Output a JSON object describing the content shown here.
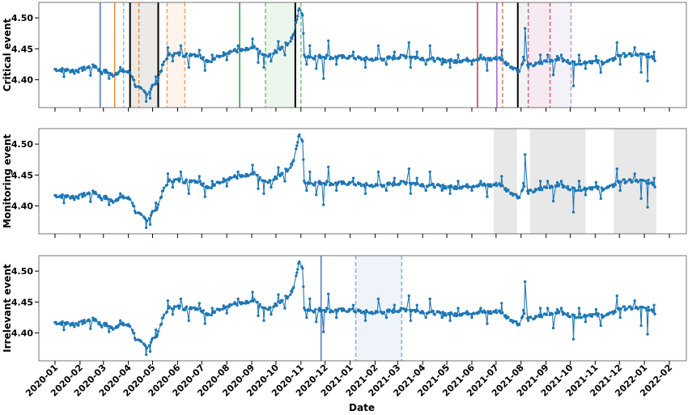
{
  "figure": {
    "xlabel": "Date"
  },
  "chart_data": [
    {
      "type": "line",
      "ylabel": "Critical event",
      "yticks": [
        "4.40",
        "4.45",
        "4.50"
      ],
      "ylim": [
        4.355,
        4.525
      ],
      "vlines": [
        {
          "date": "2020-02-26",
          "color": "#4c80c8",
          "style": "solid"
        },
        {
          "date": "2020-03-15",
          "color": "#f0913a",
          "style": "solid"
        },
        {
          "date": "2020-03-26",
          "color": "#9bbde0",
          "style": "dashed"
        },
        {
          "date": "2020-04-03",
          "color": "#000000",
          "style": "solid"
        },
        {
          "date": "2020-04-14",
          "color": "#f0913a",
          "style": "dashed"
        },
        {
          "date": "2020-05-08",
          "color": "#000000",
          "style": "solid"
        },
        {
          "date": "2020-05-19",
          "color": "#f4a76a",
          "style": "dashed"
        },
        {
          "date": "2020-06-10",
          "color": "#f4a76a",
          "style": "dashed"
        },
        {
          "date": "2020-08-17",
          "color": "#3aa33a",
          "style": "solid"
        },
        {
          "date": "2020-09-18",
          "color": "#7ec47e",
          "style": "dashed"
        },
        {
          "date": "2020-10-25",
          "color": "#000000",
          "style": "solid"
        },
        {
          "date": "2020-11-01",
          "color": "#7ec47e",
          "style": "dashed"
        },
        {
          "date": "2021-06-08",
          "color": "#d13f3f",
          "style": "solid"
        },
        {
          "date": "2021-07-02",
          "color": "#a86fc4",
          "style": "solid"
        },
        {
          "date": "2021-07-09",
          "color": "#e37a7a",
          "style": "dashed"
        },
        {
          "date": "2021-07-28",
          "color": "#000000",
          "style": "solid"
        },
        {
          "date": "2021-08-10",
          "color": "#c0709a",
          "style": "dashed"
        },
        {
          "date": "2021-09-06",
          "color": "#d26a6a",
          "style": "dashed"
        },
        {
          "date": "2021-10-02",
          "color": "#b9a3d8",
          "style": "dashed"
        }
      ],
      "shades": [
        {
          "start": "2020-04-03",
          "end": "2020-05-08",
          "color": "#6b4d2e",
          "opacity": 0.12
        },
        {
          "start": "2020-05-19",
          "end": "2020-06-10",
          "color": "#f4a76a",
          "opacity": 0.12
        },
        {
          "start": "2020-09-18",
          "end": "2020-10-25",
          "color": "#7ec47e",
          "opacity": 0.15
        },
        {
          "start": "2021-07-28",
          "end": "2021-08-10",
          "color": "#888888",
          "opacity": 0.1
        },
        {
          "start": "2021-08-10",
          "end": "2021-09-06",
          "color": "#c0709a",
          "opacity": 0.15
        },
        {
          "start": "2021-09-06",
          "end": "2021-10-02",
          "color": "#b9a3d8",
          "opacity": 0.15
        }
      ]
    },
    {
      "type": "line",
      "ylabel": "Monitoring event",
      "yticks": [
        "4.40",
        "4.45",
        "4.50"
      ],
      "ylim": [
        4.355,
        4.525
      ],
      "vlines": [],
      "shades": [
        {
          "start": "2021-06-28",
          "end": "2021-07-27",
          "color": "#b4b4b4",
          "opacity": 0.3
        },
        {
          "start": "2021-08-12",
          "end": "2021-10-20",
          "color": "#b4b4b4",
          "opacity": 0.3
        },
        {
          "start": "2021-11-24",
          "end": "2022-01-16",
          "color": "#b4b4b4",
          "opacity": 0.3
        }
      ]
    },
    {
      "type": "line",
      "ylabel": "Irrelevant event",
      "yticks": [
        "4.40",
        "4.45",
        "4.50"
      ],
      "ylim": [
        4.355,
        4.525
      ],
      "vlines": [
        {
          "date": "2020-11-26",
          "color": "#4c80c8",
          "style": "solid"
        },
        {
          "date": "2021-01-08",
          "color": "#8fb3d9",
          "style": "dashed"
        },
        {
          "date": "2021-03-06",
          "color": "#8fb3d9",
          "style": "dashed"
        }
      ],
      "shades": [
        {
          "start": "2021-01-08",
          "end": "2021-03-06",
          "color": "#8fb3d9",
          "opacity": 0.15
        }
      ]
    }
  ],
  "shared_series": {
    "color": "#1f77b4",
    "anchors": [
      [
        "2020-01-01",
        4.417
      ],
      [
        "2020-01-10",
        4.416
      ],
      [
        "2020-01-20",
        4.415
      ],
      [
        "2020-01-31",
        4.415
      ],
      [
        "2020-02-10",
        4.42
      ],
      [
        "2020-02-20",
        4.422
      ],
      [
        "2020-02-28",
        4.412
      ],
      [
        "2020-03-05",
        4.414
      ],
      [
        "2020-03-12",
        4.407
      ],
      [
        "2020-03-20",
        4.413
      ],
      [
        "2020-03-28",
        4.414
      ],
      [
        "2020-04-05",
        4.41
      ],
      [
        "2020-04-10",
        4.39
      ],
      [
        "2020-04-18",
        4.383
      ],
      [
        "2020-04-25",
        4.376
      ],
      [
        "2020-05-01",
        4.39
      ],
      [
        "2020-05-07",
        4.398
      ],
      [
        "2020-05-14",
        4.425
      ],
      [
        "2020-05-22",
        4.44
      ],
      [
        "2020-06-01",
        4.442
      ],
      [
        "2020-06-10",
        4.44
      ],
      [
        "2020-06-20",
        4.442
      ],
      [
        "2020-07-01",
        4.437
      ],
      [
        "2020-07-10",
        4.43
      ],
      [
        "2020-07-20",
        4.436
      ],
      [
        "2020-07-31",
        4.444
      ],
      [
        "2020-08-10",
        4.447
      ],
      [
        "2020-08-20",
        4.447
      ],
      [
        "2020-08-31",
        4.45
      ],
      [
        "2020-09-05",
        4.452
      ],
      [
        "2020-09-12",
        4.442
      ],
      [
        "2020-09-20",
        4.437
      ],
      [
        "2020-10-01",
        4.445
      ],
      [
        "2020-10-10",
        4.455
      ],
      [
        "2020-10-17",
        4.46
      ],
      [
        "2020-10-22",
        4.47
      ],
      [
        "2020-10-26",
        4.49
      ],
      [
        "2020-10-30",
        4.517
      ],
      [
        "2020-11-03",
        4.505
      ],
      [
        "2020-11-05",
        4.44
      ],
      [
        "2020-11-15",
        4.436
      ],
      [
        "2020-11-26",
        4.438
      ],
      [
        "2020-12-10",
        4.436
      ],
      [
        "2021-01-01",
        4.437
      ],
      [
        "2021-01-15",
        4.434
      ],
      [
        "2021-02-01",
        4.433
      ],
      [
        "2021-02-20",
        4.435
      ],
      [
        "2021-03-10",
        4.438
      ],
      [
        "2021-04-01",
        4.435
      ],
      [
        "2021-04-20",
        4.432
      ],
      [
        "2021-05-10",
        4.43
      ],
      [
        "2021-05-25",
        4.432
      ],
      [
        "2021-06-10",
        4.434
      ],
      [
        "2021-06-25",
        4.433
      ],
      [
        "2021-07-05",
        4.436
      ],
      [
        "2021-07-15",
        4.425
      ],
      [
        "2021-07-25",
        4.418
      ],
      [
        "2021-07-31",
        4.413
      ],
      [
        "2021-08-04",
        4.435
      ],
      [
        "2021-08-08",
        4.422
      ],
      [
        "2021-08-20",
        4.425
      ],
      [
        "2021-09-01",
        4.43
      ],
      [
        "2021-09-15",
        4.435
      ],
      [
        "2021-09-25",
        4.43
      ],
      [
        "2021-10-10",
        4.427
      ],
      [
        "2021-10-25",
        4.43
      ],
      [
        "2021-11-10",
        4.428
      ],
      [
        "2021-11-20",
        4.43
      ],
      [
        "2021-12-01",
        4.44
      ],
      [
        "2021-12-15",
        4.44
      ],
      [
        "2022-01-01",
        4.44
      ],
      [
        "2022-01-10",
        4.438
      ],
      [
        "2022-01-16",
        4.428
      ]
    ],
    "spikes": [
      [
        "2020-01-12",
        4.405
      ],
      [
        "2020-01-25",
        4.41
      ],
      [
        "2020-02-14",
        4.407
      ],
      [
        "2020-03-08",
        4.402
      ],
      [
        "2020-03-22",
        4.42
      ],
      [
        "2020-04-23",
        4.365
      ],
      [
        "2020-04-28",
        4.37
      ],
      [
        "2020-05-05",
        4.405
      ],
      [
        "2020-05-20",
        4.452
      ],
      [
        "2020-05-26",
        4.43
      ],
      [
        "2020-06-05",
        4.455
      ],
      [
        "2020-06-15",
        4.42
      ],
      [
        "2020-06-28",
        4.448
      ],
      [
        "2020-07-05",
        4.415
      ],
      [
        "2020-07-14",
        4.44
      ],
      [
        "2020-08-01",
        4.432
      ],
      [
        "2020-08-15",
        4.455
      ],
      [
        "2020-09-02",
        4.466
      ],
      [
        "2020-09-09",
        4.428
      ],
      [
        "2020-09-16",
        4.42
      ],
      [
        "2020-09-25",
        4.43
      ],
      [
        "2020-10-04",
        4.462
      ],
      [
        "2020-10-12",
        4.44
      ],
      [
        "2020-10-20",
        4.468
      ],
      [
        "2020-11-08",
        4.425
      ],
      [
        "2020-11-12",
        4.455
      ],
      [
        "2020-11-20",
        4.418
      ],
      [
        "2020-11-29",
        4.402
      ],
      [
        "2020-12-03",
        4.44
      ],
      [
        "2020-12-05",
        4.463
      ],
      [
        "2020-12-15",
        4.425
      ],
      [
        "2021-01-05",
        4.445
      ],
      [
        "2021-01-20",
        4.42
      ],
      [
        "2021-02-05",
        4.455
      ],
      [
        "2021-02-15",
        4.425
      ],
      [
        "2021-02-25",
        4.445
      ],
      [
        "2021-03-15",
        4.46
      ],
      [
        "2021-03-17",
        4.42
      ],
      [
        "2021-03-25",
        4.445
      ],
      [
        "2021-04-05",
        4.425
      ],
      [
        "2021-04-10",
        4.455
      ],
      [
        "2021-04-25",
        4.425
      ],
      [
        "2021-05-05",
        4.42
      ],
      [
        "2021-05-15",
        4.44
      ],
      [
        "2021-06-01",
        4.425
      ],
      [
        "2021-06-12",
        4.44
      ],
      [
        "2021-06-20",
        4.415
      ],
      [
        "2021-07-08",
        4.448
      ],
      [
        "2021-08-06",
        4.483
      ],
      [
        "2021-08-25",
        4.44
      ],
      [
        "2021-09-03",
        4.44
      ],
      [
        "2021-09-10",
        4.408
      ],
      [
        "2021-09-20",
        4.44
      ],
      [
        "2021-10-05",
        4.39
      ],
      [
        "2021-10-12",
        4.44
      ],
      [
        "2021-10-20",
        4.418
      ],
      [
        "2021-11-02",
        4.438
      ],
      [
        "2021-11-08",
        4.412
      ],
      [
        "2021-11-28",
        4.46
      ],
      [
        "2021-12-02",
        4.425
      ],
      [
        "2021-12-20",
        4.452
      ],
      [
        "2021-12-28",
        4.412
      ],
      [
        "2022-01-05",
        4.398
      ],
      [
        "2022-01-13",
        4.445
      ]
    ]
  },
  "x_axis": {
    "tick_labels": [
      "2020-01",
      "2020-02",
      "2020-03",
      "2020-04",
      "2020-05",
      "2020-06",
      "2020-07",
      "2020-08",
      "2020-09",
      "2020-10",
      "2020-11",
      "2020-12",
      "2021-01",
      "2021-02",
      "2021-03",
      "2021-04",
      "2021-05",
      "2021-06",
      "2021-07",
      "2021-08",
      "2021-09",
      "2021-10",
      "2021-11",
      "2021-12",
      "2022-01",
      "2022-02"
    ]
  }
}
